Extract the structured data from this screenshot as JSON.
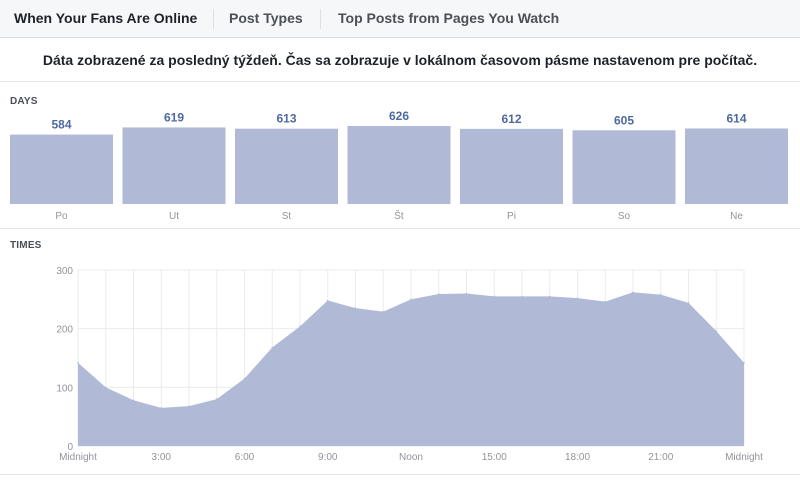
{
  "tabs": [
    {
      "label": "When Your Fans Are Online",
      "active": true
    },
    {
      "label": "Post Types",
      "active": false
    },
    {
      "label": "Top Posts from Pages You Watch",
      "active": false
    }
  ],
  "info_text": "Dáta zobrazené za posledný týždeň. Čas sa zobrazuje v lokálnom časovom pásme nastavenom pre počítač.",
  "days_label": "DAYS",
  "times_label": "TIMES",
  "colors": {
    "fill": "#b0bad7",
    "value_text": "#4e69a2",
    "axis_text": "#90949c",
    "grid": "#e9ebee"
  },
  "chart_data": [
    {
      "type": "bar",
      "title": "DAYS",
      "categories": [
        "Po",
        "Ut",
        "St",
        "Št",
        "Pi",
        "So",
        "Ne"
      ],
      "values": [
        584,
        619,
        613,
        626,
        612,
        605,
        614
      ]
    },
    {
      "type": "area",
      "title": "TIMES",
      "x_tick_labels": [
        "Midnight",
        "3:00",
        "6:00",
        "9:00",
        "Noon",
        "15:00",
        "18:00",
        "21:00",
        "Midnight"
      ],
      "x_hours": [
        0,
        3,
        6,
        9,
        12,
        15,
        18,
        21,
        24
      ],
      "y_ticks": [
        0,
        100,
        200,
        300
      ],
      "ylim": [
        0,
        300
      ],
      "series": [
        {
          "x": [
            0,
            1,
            2,
            3,
            4,
            5,
            6,
            7,
            8,
            9,
            10,
            11,
            12,
            13,
            14,
            15,
            16,
            17,
            18,
            19,
            20,
            21,
            22,
            23,
            24
          ],
          "y": [
            142,
            100,
            78,
            65,
            68,
            80,
            115,
            168,
            204,
            248,
            235,
            229,
            250,
            259,
            260,
            255,
            255,
            255,
            252,
            246,
            262,
            258,
            244,
            196,
            142
          ]
        }
      ],
      "grid": true
    }
  ]
}
